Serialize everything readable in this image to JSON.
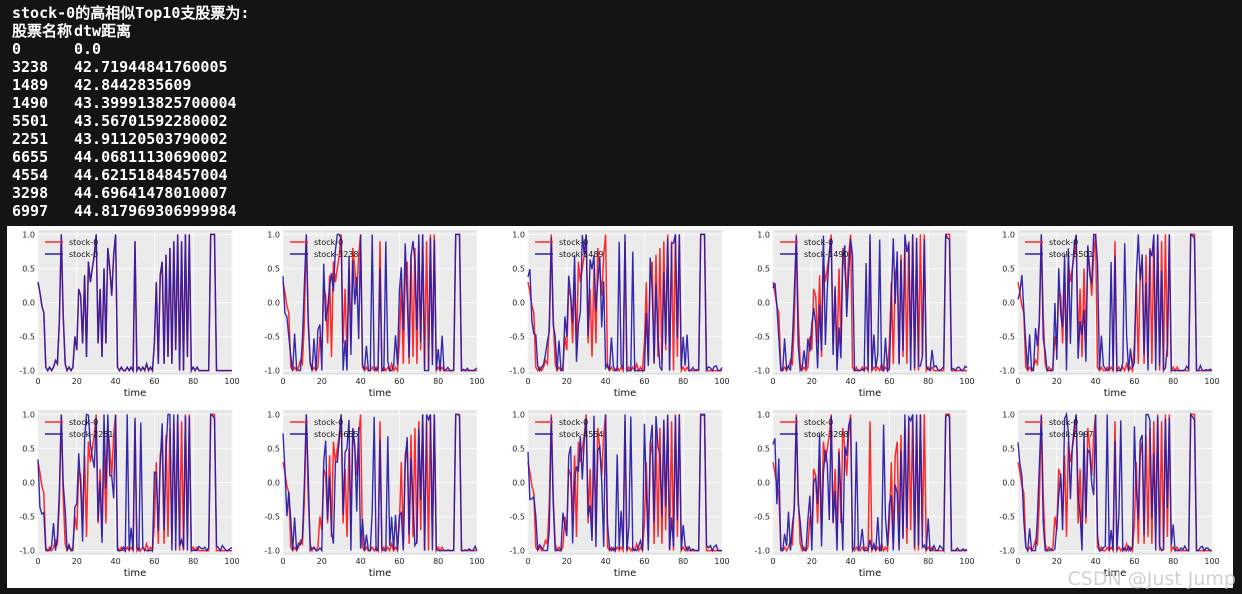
{
  "console": {
    "title": "stock-0的高相似Top10支股票为:",
    "header": [
      "股票名称",
      "dtw距离"
    ],
    "rows": [
      [
        "0",
        "0.0"
      ],
      [
        "3238",
        "42.71944841760005"
      ],
      [
        "1489",
        "42.8442835609"
      ],
      [
        "1490",
        "43.399913825700004"
      ],
      [
        "5501",
        "43.56701592280002"
      ],
      [
        "2251",
        "43.91120503790002"
      ],
      [
        "6655",
        "44.06811130690002"
      ],
      [
        "4554",
        "44.62151848457004"
      ],
      [
        "3298",
        "44.69641478010007"
      ],
      [
        "6997",
        "44.817969306999984"
      ]
    ]
  },
  "watermark": "CSDN @Just Jump",
  "colors": {
    "reference": "#ff2a2a",
    "comparison": "#2b1fa8",
    "panel_bg": "#ebebeb",
    "grid": "#ffffff"
  },
  "chart_data": {
    "type": "line",
    "layout": "2x5 grid of subplots",
    "xlabel": "time",
    "xlim": [
      0,
      100
    ],
    "ylim": [
      -1.05,
      1.05
    ],
    "x_ticks": [
      0,
      20,
      40,
      60,
      80,
      100
    ],
    "y_ticks": [
      "1.0",
      "0.5",
      "0.0",
      "-0.5",
      "-1.0"
    ],
    "y_tick_values": [
      1.0,
      0.5,
      0.0,
      -0.5,
      -1.0
    ],
    "grid": true,
    "legend_position": "upper-left",
    "x": [
      0,
      1,
      2,
      3,
      4,
      5,
      6,
      7,
      8,
      9,
      10,
      11,
      12,
      13,
      14,
      15,
      16,
      17,
      18,
      19,
      20,
      21,
      22,
      23,
      24,
      25,
      26,
      27,
      28,
      29,
      30,
      31,
      32,
      33,
      34,
      35,
      36,
      37,
      38,
      39,
      40,
      41,
      42,
      43,
      44,
      45,
      46,
      47,
      48,
      49,
      50,
      51,
      52,
      53,
      54,
      55,
      56,
      57,
      58,
      59,
      60,
      61,
      62,
      63,
      64,
      65,
      66,
      67,
      68,
      69,
      70,
      71,
      72,
      73,
      74,
      75,
      76,
      77,
      78,
      79,
      80,
      81,
      82,
      83,
      84,
      85,
      86,
      87,
      88,
      89,
      90,
      91,
      92,
      93,
      94,
      95,
      96,
      97,
      98,
      99,
      100
    ],
    "reference_series": {
      "name": "stock-0",
      "values": [
        0.3,
        0.15,
        -0.05,
        -0.15,
        -0.95,
        -1.0,
        -0.95,
        -1.0,
        -0.95,
        -0.85,
        -0.9,
        -0.3,
        1.0,
        -0.2,
        -0.9,
        -1.0,
        -0.95,
        -1.0,
        -0.95,
        -0.5,
        -0.7,
        0.2,
        0.1,
        -0.6,
        0.4,
        -0.8,
        0.6,
        0.3,
        0.5,
        0.7,
        1.0,
        -0.6,
        0.2,
        -0.8,
        0.5,
        -0.6,
        0.8,
        0.5,
        0.1,
        0.7,
        1.0,
        -0.95,
        -1.0,
        -0.95,
        -1.0,
        -1.0,
        -0.95,
        -1.0,
        -0.95,
        -1.0,
        0.9,
        -1.0,
        -0.95,
        -1.0,
        -0.95,
        -1.0,
        -0.9,
        -1.0,
        -0.95,
        -1.0,
        -0.6,
        0.3,
        -0.9,
        0.4,
        0.6,
        -0.9,
        0.7,
        -0.8,
        0.8,
        -0.9,
        0.9,
        -0.7,
        1.0,
        -1.0,
        0.9,
        -1.0,
        1.0,
        -0.8,
        1.0,
        -1.0,
        -0.95,
        -1.0,
        -0.95,
        -1.0,
        -1.0,
        -1.0,
        -1.0,
        -1.0,
        -1.0,
        1.0,
        1.0,
        1.0,
        -1.0,
        -1.0,
        -1.0,
        -1.0,
        -1.0,
        -1.0,
        -1.0,
        -1.0,
        -1.0
      ]
    },
    "subplots": [
      {
        "series": [
          "stock-0",
          "stock-0"
        ],
        "seed": 0,
        "delta": 0.0
      },
      {
        "series": [
          "stock-0",
          "stock-3238"
        ],
        "seed": 3238,
        "delta": 0.55
      },
      {
        "series": [
          "stock-0",
          "stock-1489"
        ],
        "seed": 1489,
        "delta": 0.5
      },
      {
        "series": [
          "stock-0",
          "stock-1490"
        ],
        "seed": 1490,
        "delta": 0.5
      },
      {
        "series": [
          "stock-0",
          "stock-5501"
        ],
        "seed": 5501,
        "delta": 0.5
      },
      {
        "series": [
          "stock-0",
          "stock-2251"
        ],
        "seed": 2251,
        "delta": 0.55
      },
      {
        "series": [
          "stock-0",
          "stock-6655"
        ],
        "seed": 6655,
        "delta": 0.55
      },
      {
        "series": [
          "stock-0",
          "stock-4554"
        ],
        "seed": 4554,
        "delta": 0.55
      },
      {
        "series": [
          "stock-0",
          "stock-3298"
        ],
        "seed": 3298,
        "delta": 0.55
      },
      {
        "series": [
          "stock-0",
          "stock-6997"
        ],
        "seed": 6997,
        "delta": 0.55
      }
    ]
  }
}
